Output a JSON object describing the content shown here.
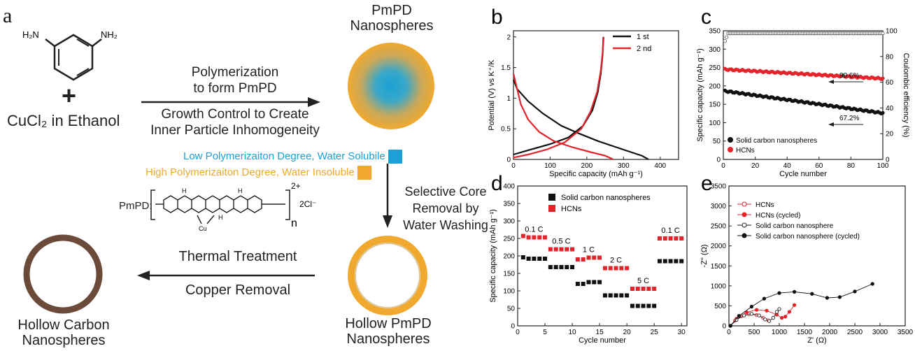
{
  "scheme": {
    "panel_label": "a",
    "reagent": "CuCl₂ in Ethanol",
    "plus": "+",
    "amine_labels": [
      "H₂N",
      "NH₂"
    ],
    "step1_top": [
      "Polymerization",
      "to form PmPD"
    ],
    "step1_bottom": [
      "Growth Control to Create",
      "Inner Particle Inhomogeneity"
    ],
    "product1": [
      "PmPD",
      "Nanospheres"
    ],
    "legend_low": "Low Polymerizaiton Degree, Water Solubile",
    "legend_high": "High Polymerizaiton Degree, Water Insoluble",
    "legend_low_color": "#1aa1d6",
    "legend_high_color": "#f0a92e",
    "pmpd_label": "PmPD:",
    "pmpd_charge": "2+",
    "pmpd_counter": "2Cl⁻",
    "pmpd_n": "n",
    "pmpd_cu": "Cu",
    "pmpd_h": "H",
    "step2": [
      "Selective Core",
      "Removal by",
      "Water Washing"
    ],
    "product2": [
      "Hollow PmPD",
      "Nanospheres"
    ],
    "step3_top": "Thermal Treatment",
    "step3_bottom": "Copper Removal",
    "product3": [
      "Hollow Carbon",
      "Nanospheres"
    ],
    "carbon_color": "#6b4a3a"
  },
  "colors": {
    "black": "#111111",
    "red": "#e3242b"
  },
  "chart_data": [
    {
      "panel": "b",
      "type": "line",
      "xlabel": "Specific capacity (mAh g⁻¹)",
      "ylabel": "Potential (V) vs K⁺/K",
      "xlim": [
        0,
        450
      ],
      "ylim": [
        0,
        2.1
      ],
      "xticks": [
        0,
        100,
        200,
        300,
        400
      ],
      "yticks": [
        0.0,
        0.5,
        1.0,
        1.5,
        2.0
      ],
      "legend_position": "top-right",
      "series": [
        {
          "name": "1 st",
          "color": "#111111",
          "discharge": [
            [
              0,
              1.3
            ],
            [
              10,
              1.15
            ],
            [
              40,
              0.95
            ],
            [
              80,
              0.75
            ],
            [
              130,
              0.55
            ],
            [
              180,
              0.42
            ],
            [
              230,
              0.3
            ],
            [
              280,
              0.2
            ],
            [
              320,
              0.12
            ],
            [
              350,
              0.06
            ],
            [
              368,
              0.0
            ]
          ],
          "charge": [
            [
              0,
              0.08
            ],
            [
              40,
              0.15
            ],
            [
              100,
              0.25
            ],
            [
              150,
              0.36
            ],
            [
              190,
              0.55
            ],
            [
              215,
              0.8
            ],
            [
              230,
              1.1
            ],
            [
              238,
              1.4
            ],
            [
              243,
              1.7
            ],
            [
              245,
              2.0
            ]
          ]
        },
        {
          "name": "2 nd",
          "color": "#e3242b",
          "discharge": [
            [
              0,
              1.4
            ],
            [
              8,
              1.2
            ],
            [
              20,
              0.9
            ],
            [
              40,
              0.65
            ],
            [
              70,
              0.45
            ],
            [
              110,
              0.3
            ],
            [
              160,
              0.2
            ],
            [
              210,
              0.12
            ],
            [
              250,
              0.06
            ],
            [
              272,
              0.0
            ]
          ],
          "charge": [
            [
              0,
              0.03
            ],
            [
              40,
              0.08
            ],
            [
              90,
              0.16
            ],
            [
              140,
              0.28
            ],
            [
              185,
              0.5
            ],
            [
              210,
              0.78
            ],
            [
              228,
              1.1
            ],
            [
              238,
              1.45
            ],
            [
              243,
              1.75
            ],
            [
              246,
              2.0
            ]
          ]
        }
      ]
    },
    {
      "panel": "c",
      "type": "scatter",
      "xlabel": "Cycle number",
      "ylabel": "Specific capacity (mAh g⁻¹)",
      "y2label": "Coulombic efficiency (%)",
      "xlim": [
        0,
        100
      ],
      "ylim": [
        0,
        350
      ],
      "y2lim": [
        0,
        100
      ],
      "xticks": [
        0,
        20,
        40,
        60,
        80,
        100
      ],
      "yticks": [
        0,
        50,
        100,
        150,
        200,
        250,
        300,
        350
      ],
      "y2ticks": [
        0,
        20,
        40,
        60,
        80,
        100
      ],
      "annotations": [
        "90.6%",
        "67.2%"
      ],
      "legend_position": "bottom-left",
      "series": [
        {
          "name": "Solid carbon nanospheres",
          "color": "#111111",
          "start": 186,
          "end": 126
        },
        {
          "name": "HCNs",
          "color": "#e3242b",
          "start": 245,
          "end": 220
        }
      ],
      "efficiency_start": 92,
      "efficiency_plateau": 98
    },
    {
      "panel": "d",
      "type": "scatter",
      "xlabel": "Cycle number",
      "ylabel": "Specific capacity (mAh g⁻¹)",
      "xlim": [
        0,
        31
      ],
      "ylim": [
        0,
        400
      ],
      "xticks": [
        0,
        5,
        10,
        15,
        20,
        25,
        30
      ],
      "yticks": [
        0,
        50,
        100,
        150,
        200,
        250,
        300,
        350,
        400
      ],
      "legend_position": "top-left",
      "rates": [
        "0.1 C",
        "0.5 C",
        "1 C",
        "2 C",
        "5 C",
        "0.1 C"
      ],
      "series": [
        {
          "name": "Solid carbon nanospheres",
          "color": "#111111",
          "levels": [
            192,
            168,
            125,
            87,
            57,
            185
          ]
        },
        {
          "name": "HCNs",
          "color": "#e3242b",
          "levels": [
            253,
            219,
            195,
            165,
            106,
            250
          ]
        }
      ]
    },
    {
      "panel": "e",
      "type": "scatter",
      "xlabel": "Z' (Ω)",
      "ylabel": "-Z'' (Ω)",
      "xlim": [
        0,
        3500
      ],
      "ylim": [
        0,
        3500
      ],
      "xticks": [
        0,
        500,
        1000,
        1500,
        2000,
        2500,
        3000,
        3500
      ],
      "yticks": [
        0,
        500,
        1000,
        1500,
        2000,
        2500,
        3000,
        3500
      ],
      "legend_position": "top-left",
      "series": [
        {
          "name": "HCNs",
          "color": "#e3242b",
          "filled": false,
          "points": [
            [
              30,
              0
            ],
            [
              120,
              130
            ],
            [
              250,
              240
            ],
            [
              400,
              290
            ],
            [
              550,
              270
            ],
            [
              680,
              200
            ],
            [
              780,
              140
            ]
          ]
        },
        {
          "name": "HCNs (cycled)",
          "color": "#e3242b",
          "filled": true,
          "points": [
            [
              30,
              0
            ],
            [
              150,
              180
            ],
            [
              350,
              340
            ],
            [
              550,
              400
            ],
            [
              750,
              380
            ],
            [
              950,
              280
            ],
            [
              1050,
              200
            ],
            [
              1120,
              230
            ],
            [
              1200,
              350
            ],
            [
              1300,
              520
            ]
          ]
        },
        {
          "name": "Solid carbon nanosphere",
          "color": "#222222",
          "filled": false,
          "points": [
            [
              30,
              0
            ],
            [
              150,
              150
            ],
            [
              300,
              260
            ],
            [
              450,
              300
            ],
            [
              600,
              260
            ],
            [
              720,
              160
            ],
            [
              800,
              120
            ],
            [
              880,
              200
            ],
            [
              950,
              350
            ],
            [
              1000,
              420
            ]
          ]
        },
        {
          "name": "Solid carbon nanosphere (cycled)",
          "color": "#111111",
          "filled": true,
          "points": [
            [
              30,
              0
            ],
            [
              200,
              250
            ],
            [
              450,
              480
            ],
            [
              700,
              680
            ],
            [
              1000,
              820
            ],
            [
              1300,
              850
            ],
            [
              1650,
              800
            ],
            [
              1950,
              700
            ],
            [
              2200,
              720
            ],
            [
              2500,
              860
            ],
            [
              2850,
              1050
            ]
          ]
        }
      ]
    }
  ]
}
